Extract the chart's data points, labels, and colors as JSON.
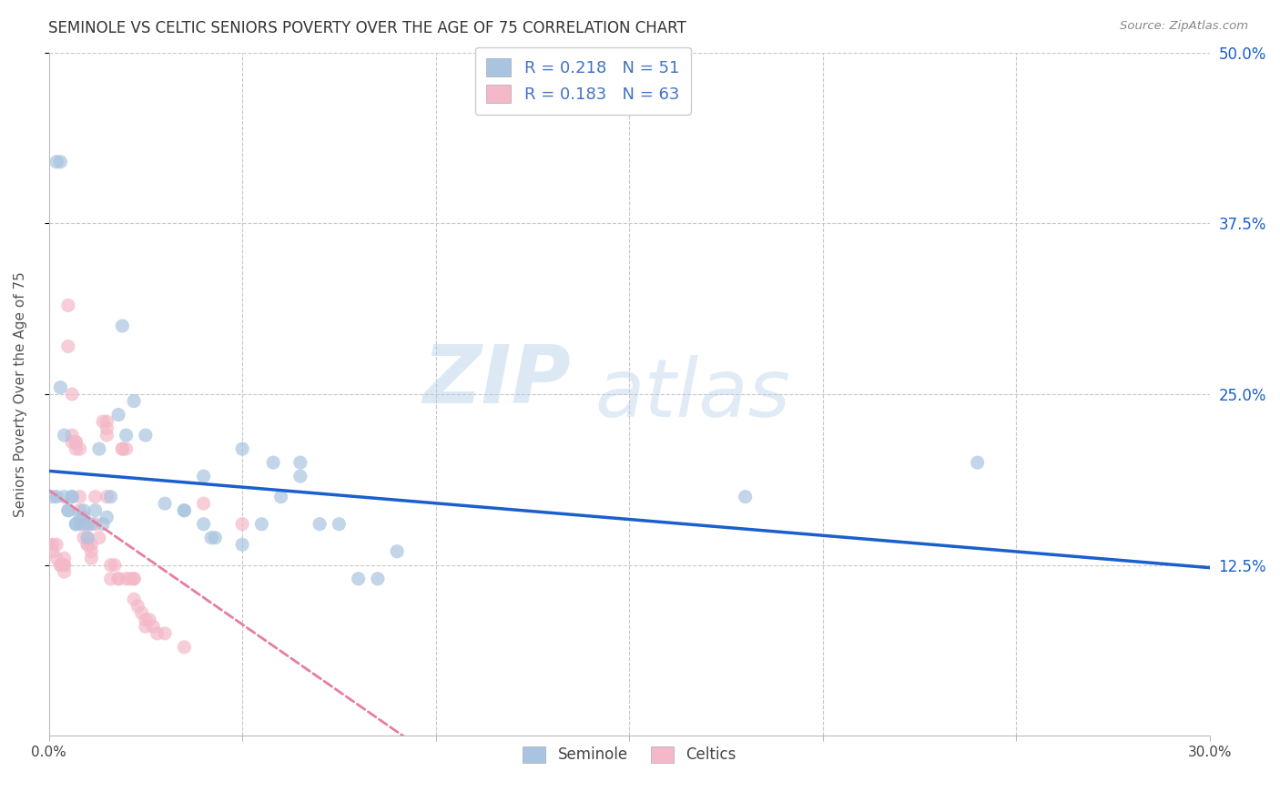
{
  "title": "SEMINOLE VS CELTIC SENIORS POVERTY OVER THE AGE OF 75 CORRELATION CHART",
  "source": "Source: ZipAtlas.com",
  "ylabel": "Seniors Poverty Over the Age of 75",
  "seminole_R": 0.218,
  "seminole_N": 51,
  "celtics_R": 0.183,
  "celtics_N": 63,
  "seminole_color": "#a8c4e0",
  "celtics_color": "#f4b8c8",
  "trendline_seminole_color": "#1a5fcc",
  "trendline_celtics_color": "#e87da0",
  "legend_text_color": "#4472c4",
  "background_color": "#ffffff",
  "grid_color": "#c8c8c8",
  "xmin": 0.0,
  "xmax": 0.3,
  "ymin": 0.0,
  "ymax": 0.5,
  "seminole_scatter": [
    [
      0.001,
      0.175
    ],
    [
      0.002,
      0.175
    ],
    [
      0.002,
      0.42
    ],
    [
      0.003,
      0.255
    ],
    [
      0.003,
      0.42
    ],
    [
      0.004,
      0.175
    ],
    [
      0.004,
      0.22
    ],
    [
      0.005,
      0.165
    ],
    [
      0.005,
      0.165
    ],
    [
      0.006,
      0.175
    ],
    [
      0.006,
      0.175
    ],
    [
      0.007,
      0.155
    ],
    [
      0.007,
      0.155
    ],
    [
      0.008,
      0.16
    ],
    [
      0.008,
      0.155
    ],
    [
      0.009,
      0.16
    ],
    [
      0.009,
      0.165
    ],
    [
      0.01,
      0.155
    ],
    [
      0.01,
      0.145
    ],
    [
      0.011,
      0.155
    ],
    [
      0.012,
      0.165
    ],
    [
      0.013,
      0.21
    ],
    [
      0.014,
      0.155
    ],
    [
      0.015,
      0.16
    ],
    [
      0.016,
      0.175
    ],
    [
      0.018,
      0.235
    ],
    [
      0.019,
      0.3
    ],
    [
      0.02,
      0.22
    ],
    [
      0.022,
      0.245
    ],
    [
      0.025,
      0.22
    ],
    [
      0.03,
      0.17
    ],
    [
      0.035,
      0.165
    ],
    [
      0.035,
      0.165
    ],
    [
      0.04,
      0.155
    ],
    [
      0.04,
      0.19
    ],
    [
      0.042,
      0.145
    ],
    [
      0.043,
      0.145
    ],
    [
      0.05,
      0.14
    ],
    [
      0.05,
      0.21
    ],
    [
      0.055,
      0.155
    ],
    [
      0.058,
      0.2
    ],
    [
      0.06,
      0.175
    ],
    [
      0.065,
      0.19
    ],
    [
      0.065,
      0.2
    ],
    [
      0.07,
      0.155
    ],
    [
      0.075,
      0.155
    ],
    [
      0.08,
      0.115
    ],
    [
      0.085,
      0.115
    ],
    [
      0.09,
      0.135
    ],
    [
      0.18,
      0.175
    ],
    [
      0.24,
      0.2
    ]
  ],
  "celtics_scatter": [
    [
      0.0,
      0.14
    ],
    [
      0.001,
      0.14
    ],
    [
      0.001,
      0.135
    ],
    [
      0.002,
      0.14
    ],
    [
      0.002,
      0.13
    ],
    [
      0.003,
      0.125
    ],
    [
      0.003,
      0.125
    ],
    [
      0.004,
      0.13
    ],
    [
      0.004,
      0.125
    ],
    [
      0.004,
      0.125
    ],
    [
      0.004,
      0.12
    ],
    [
      0.005,
      0.315
    ],
    [
      0.005,
      0.285
    ],
    [
      0.006,
      0.25
    ],
    [
      0.006,
      0.22
    ],
    [
      0.006,
      0.215
    ],
    [
      0.007,
      0.215
    ],
    [
      0.007,
      0.215
    ],
    [
      0.007,
      0.21
    ],
    [
      0.008,
      0.21
    ],
    [
      0.008,
      0.175
    ],
    [
      0.008,
      0.165
    ],
    [
      0.009,
      0.155
    ],
    [
      0.009,
      0.155
    ],
    [
      0.009,
      0.145
    ],
    [
      0.01,
      0.145
    ],
    [
      0.01,
      0.14
    ],
    [
      0.01,
      0.14
    ],
    [
      0.011,
      0.14
    ],
    [
      0.011,
      0.135
    ],
    [
      0.011,
      0.13
    ],
    [
      0.012,
      0.175
    ],
    [
      0.012,
      0.155
    ],
    [
      0.013,
      0.145
    ],
    [
      0.014,
      0.23
    ],
    [
      0.015,
      0.225
    ],
    [
      0.015,
      0.22
    ],
    [
      0.015,
      0.175
    ],
    [
      0.015,
      0.23
    ],
    [
      0.016,
      0.125
    ],
    [
      0.016,
      0.115
    ],
    [
      0.017,
      0.125
    ],
    [
      0.018,
      0.115
    ],
    [
      0.018,
      0.115
    ],
    [
      0.019,
      0.21
    ],
    [
      0.019,
      0.21
    ],
    [
      0.02,
      0.21
    ],
    [
      0.02,
      0.115
    ],
    [
      0.021,
      0.115
    ],
    [
      0.022,
      0.115
    ],
    [
      0.022,
      0.115
    ],
    [
      0.022,
      0.1
    ],
    [
      0.023,
      0.095
    ],
    [
      0.024,
      0.09
    ],
    [
      0.025,
      0.085
    ],
    [
      0.025,
      0.08
    ],
    [
      0.026,
      0.085
    ],
    [
      0.027,
      0.08
    ],
    [
      0.028,
      0.075
    ],
    [
      0.03,
      0.075
    ],
    [
      0.035,
      0.065
    ],
    [
      0.04,
      0.17
    ],
    [
      0.05,
      0.155
    ]
  ]
}
